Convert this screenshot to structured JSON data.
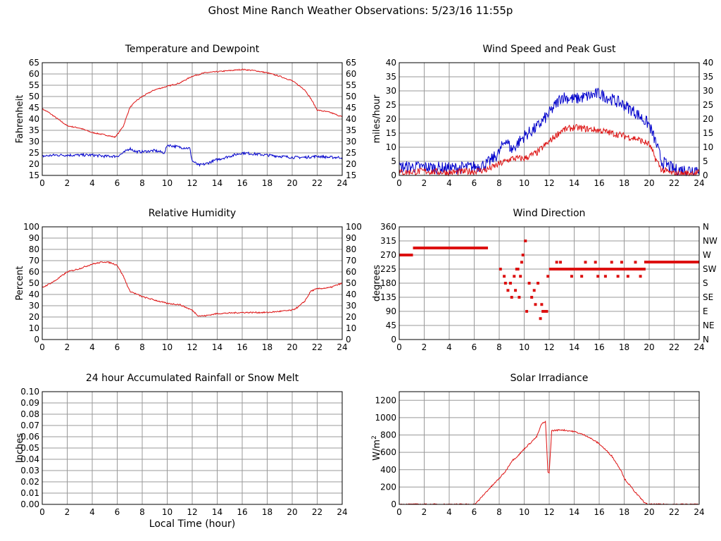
{
  "page": {
    "title": "Ghost Mine Ranch Weather Observations: 5/23/16 11:55p",
    "x_caption": "Local Time (hour)"
  },
  "colors": {
    "grid": "#999999",
    "axis": "#000000",
    "red": "#dd1111",
    "blue": "#0000cc"
  },
  "chart_data": [
    {
      "type": "line",
      "title": "Temperature and Dewpoint",
      "ylabel": "Fahrenheit",
      "xlim": [
        0,
        24
      ],
      "ylim": [
        15,
        65
      ],
      "xticks": [
        0,
        2,
        4,
        6,
        8,
        10,
        12,
        14,
        16,
        18,
        20,
        22,
        24
      ],
      "yticks": [
        15,
        20,
        25,
        30,
        35,
        40,
        45,
        50,
        55,
        60,
        65
      ],
      "right_ticks": [
        "15",
        "20",
        "25",
        "30",
        "35",
        "40",
        "45",
        "50",
        "55",
        "60",
        "65"
      ],
      "grid": true,
      "series": [
        {
          "color": "red",
          "noise": 0.25,
          "values": [
            [
              0,
              44.5
            ],
            [
              0.5,
              43
            ],
            [
              1,
              41
            ],
            [
              2,
              37
            ],
            [
              3,
              36
            ],
            [
              4,
              34
            ],
            [
              5,
              33
            ],
            [
              5.8,
              32
            ],
            [
              6,
              33
            ],
            [
              6.5,
              37
            ],
            [
              7,
              45
            ],
            [
              7.5,
              48
            ],
            [
              8,
              50
            ],
            [
              9,
              53
            ],
            [
              10,
              54.5
            ],
            [
              11,
              56
            ],
            [
              12,
              59
            ],
            [
              13,
              60.5
            ],
            [
              14,
              61
            ],
            [
              15,
              61.5
            ],
            [
              16,
              62
            ],
            [
              17,
              61.5
            ],
            [
              18,
              60.5
            ],
            [
              19,
              59
            ],
            [
              20,
              57
            ],
            [
              21,
              53
            ],
            [
              21.5,
              49
            ],
            [
              22,
              44
            ],
            [
              23,
              43
            ],
            [
              24,
              41
            ]
          ]
        },
        {
          "color": "blue",
          "noise": 0.6,
          "values": [
            [
              0,
              23.5
            ],
            [
              1,
              24
            ],
            [
              2,
              24
            ],
            [
              3,
              24
            ],
            [
              4,
              24
            ],
            [
              5,
              23.5
            ],
            [
              6,
              23.5
            ],
            [
              6.5,
              25
            ],
            [
              7,
              27
            ],
            [
              7.5,
              25.5
            ],
            [
              8,
              25.5
            ],
            [
              9,
              26
            ],
            [
              9.8,
              25
            ],
            [
              10,
              28.5
            ],
            [
              11,
              27.5
            ],
            [
              11.8,
              27
            ],
            [
              12,
              21.5
            ],
            [
              12.5,
              19.5
            ],
            [
              13,
              20
            ],
            [
              14,
              22
            ],
            [
              15,
              23.5
            ],
            [
              16,
              25
            ],
            [
              17,
              24.5
            ],
            [
              18,
              24
            ],
            [
              19,
              23.5
            ],
            [
              20,
              23
            ],
            [
              21,
              23
            ],
            [
              22,
              23.5
            ],
            [
              23,
              23
            ],
            [
              24,
              23
            ]
          ]
        }
      ]
    },
    {
      "type": "line",
      "title": "Wind Speed and Peak Gust",
      "ylabel": "miles/hour",
      "xlim": [
        0,
        24
      ],
      "ylim": [
        0,
        40
      ],
      "xticks": [
        0,
        2,
        4,
        6,
        8,
        10,
        12,
        14,
        16,
        18,
        20,
        22,
        24
      ],
      "yticks": [
        0,
        5,
        10,
        15,
        20,
        25,
        30,
        35,
        40
      ],
      "right_ticks": [
        "0",
        "5",
        "10",
        "15",
        "20",
        "25",
        "30",
        "35",
        "40"
      ],
      "grid": true,
      "series": [
        {
          "color": "blue",
          "noise": 2.2,
          "values": [
            [
              0,
              3
            ],
            [
              2,
              3
            ],
            [
              4,
              2.5
            ],
            [
              6,
              3
            ],
            [
              7,
              4
            ],
            [
              8,
              8
            ],
            [
              8.5,
              13
            ],
            [
              9,
              9
            ],
            [
              10,
              14
            ],
            [
              11,
              17
            ],
            [
              12,
              22
            ],
            [
              13,
              28
            ],
            [
              14,
              27
            ],
            [
              15,
              28
            ],
            [
              16,
              29
            ],
            [
              17,
              27
            ],
            [
              18,
              25
            ],
            [
              19,
              22
            ],
            [
              20,
              18
            ],
            [
              20.5,
              12
            ],
            [
              21,
              5
            ],
            [
              22,
              2
            ],
            [
              23,
              2
            ],
            [
              24,
              2.5
            ]
          ]
        },
        {
          "color": "red",
          "noise": 1.2,
          "values": [
            [
              0,
              1
            ],
            [
              2,
              1.5
            ],
            [
              4,
              1
            ],
            [
              6,
              1.5
            ],
            [
              7,
              2
            ],
            [
              8,
              4
            ],
            [
              9,
              6
            ],
            [
              10,
              6
            ],
            [
              11,
              8
            ],
            [
              12,
              12
            ],
            [
              13,
              16
            ],
            [
              14,
              17
            ],
            [
              15,
              16.5
            ],
            [
              16,
              16
            ],
            [
              17,
              15
            ],
            [
              18,
              14
            ],
            [
              19,
              13
            ],
            [
              20,
              11
            ],
            [
              20.5,
              6
            ],
            [
              21,
              2
            ],
            [
              22,
              0.5
            ],
            [
              24,
              1
            ]
          ]
        }
      ]
    },
    {
      "type": "line",
      "title": "Relative Humidity",
      "ylabel": "Percent",
      "xlim": [
        0,
        24
      ],
      "ylim": [
        0,
        100
      ],
      "xticks": [
        0,
        2,
        4,
        6,
        8,
        10,
        12,
        14,
        16,
        18,
        20,
        22,
        24
      ],
      "yticks": [
        0,
        10,
        20,
        30,
        40,
        50,
        60,
        70,
        80,
        90,
        100
      ],
      "right_ticks": [
        "0",
        "10",
        "20",
        "30",
        "40",
        "50",
        "60",
        "70",
        "80",
        "90",
        "100"
      ],
      "grid": true,
      "series": [
        {
          "color": "red",
          "noise": 0.6,
          "values": [
            [
              0,
              46
            ],
            [
              1,
              52
            ],
            [
              2,
              60
            ],
            [
              3,
              63
            ],
            [
              4,
              67
            ],
            [
              5,
              69
            ],
            [
              5.5,
              68
            ],
            [
              6,
              66
            ],
            [
              6.5,
              56
            ],
            [
              7,
              43
            ],
            [
              8,
              38
            ],
            [
              9,
              35
            ],
            [
              10,
              32
            ],
            [
              11,
              31
            ],
            [
              12,
              26
            ],
            [
              12.5,
              21
            ],
            [
              13,
              21
            ],
            [
              14,
              23
            ],
            [
              16,
              24
            ],
            [
              18,
              24
            ],
            [
              20,
              26
            ],
            [
              20.5,
              29
            ],
            [
              21,
              34
            ],
            [
              21.5,
              43
            ],
            [
              22,
              45
            ],
            [
              23,
              46
            ],
            [
              24,
              50
            ]
          ]
        }
      ]
    },
    {
      "type": "scatter",
      "title": "Wind Direction",
      "ylabel": "degrees",
      "xlim": [
        0,
        24
      ],
      "ylim": [
        0,
        360
      ],
      "xticks": [
        0,
        2,
        4,
        6,
        8,
        10,
        12,
        14,
        16,
        18,
        20,
        22,
        24
      ],
      "yticks": [
        0,
        45,
        90,
        135,
        180,
        225,
        270,
        315,
        360
      ],
      "right_ticks": [
        "N",
        "NE",
        "E",
        "SE",
        "S",
        "SW",
        "W",
        "NW",
        "N"
      ],
      "grid": true,
      "segments": [
        [
          0,
          1.1,
          270
        ],
        [
          1.1,
          7.1,
          292.5
        ],
        [
          19.6,
          24,
          247.5
        ]
      ],
      "points": [
        [
          8.4,
          202
        ],
        [
          8.5,
          180
        ],
        [
          8.7,
          157
        ],
        [
          8.9,
          180
        ],
        [
          9.2,
          202
        ],
        [
          9.4,
          225
        ],
        [
          9.5,
          225
        ],
        [
          9.7,
          202
        ],
        [
          8.1,
          225
        ],
        [
          9.0,
          135
        ],
        [
          9.3,
          157
        ],
        [
          9.6,
          135
        ],
        [
          9.8,
          247
        ],
        [
          9.9,
          270
        ],
        [
          10.1,
          315
        ],
        [
          10.2,
          90
        ],
        [
          10.4,
          180
        ],
        [
          10.6,
          135
        ],
        [
          10.8,
          157
        ],
        [
          10.9,
          112
        ],
        [
          11.1,
          180
        ],
        [
          11.3,
          67
        ],
        [
          11.4,
          112
        ],
        [
          11.5,
          90
        ],
        [
          11.6,
          90
        ],
        [
          11.8,
          90
        ],
        [
          11.9,
          202
        ],
        [
          12.1,
          225
        ],
        [
          12.3,
          225
        ],
        [
          12.6,
          247
        ],
        [
          12.9,
          247
        ],
        [
          13.2,
          225
        ],
        [
          13.5,
          225
        ],
        [
          13.8,
          202
        ],
        [
          14.0,
          225
        ],
        [
          14.3,
          225
        ],
        [
          14.6,
          202
        ],
        [
          14.9,
          247
        ],
        [
          15.1,
          225
        ],
        [
          15.4,
          225
        ],
        [
          15.7,
          247
        ],
        [
          15.9,
          202
        ],
        [
          16.2,
          225
        ],
        [
          16.5,
          202
        ],
        [
          16.8,
          225
        ],
        [
          17.0,
          247
        ],
        [
          17.2,
          225
        ],
        [
          17.5,
          202
        ],
        [
          17.8,
          247
        ],
        [
          18.1,
          225
        ],
        [
          18.3,
          202
        ],
        [
          18.6,
          225
        ],
        [
          18.9,
          247
        ],
        [
          19.1,
          225
        ],
        [
          19.3,
          202
        ],
        [
          19.5,
          225
        ]
      ],
      "dense_runs": [
        [
          12.4,
          19.6,
          225
        ]
      ]
    },
    {
      "type": "line",
      "title": "24 hour Accumulated Rainfall or Snow Melt",
      "ylabel": "Inches",
      "xlim": [
        0,
        24
      ],
      "ylim": [
        0,
        0.1
      ],
      "xticks": [
        0,
        2,
        4,
        6,
        8,
        10,
        12,
        14,
        16,
        18,
        20,
        22,
        24
      ],
      "yticks": [
        0,
        0.01,
        0.02,
        0.03,
        0.04,
        0.05,
        0.06,
        0.07,
        0.08,
        0.09,
        0.1
      ],
      "ytick_labels": [
        "0.00",
        "0.01",
        "0.02",
        "0.03",
        "0.04",
        "0.05",
        "0.06",
        "0.07",
        "0.08",
        "0.09",
        "0.10"
      ],
      "grid": true,
      "series": [
        {
          "color": "red",
          "noise": 0,
          "values": [
            [
              0,
              0
            ],
            [
              24,
              0
            ]
          ]
        }
      ]
    },
    {
      "type": "line",
      "title": "Solar Irradiance",
      "ylabel": "W/m",
      "ylabel_sup": "2",
      "xlim": [
        0,
        24
      ],
      "ylim": [
        0,
        1300
      ],
      "xticks": [
        0,
        2,
        4,
        6,
        8,
        10,
        12,
        14,
        16,
        18,
        20,
        22,
        24
      ],
      "yticks": [
        0,
        200,
        400,
        600,
        800,
        1000,
        1200
      ],
      "grid": true,
      "series": [
        {
          "color": "red",
          "noise": 8,
          "values": [
            [
              0,
              0
            ],
            [
              6,
              0
            ],
            [
              6.2,
              20
            ],
            [
              7,
              150
            ],
            [
              8,
              300
            ],
            [
              8.5,
              380
            ],
            [
              9,
              500
            ],
            [
              9.5,
              560
            ],
            [
              10,
              640
            ],
            [
              11,
              780
            ],
            [
              11.4,
              930
            ],
            [
              11.7,
              950
            ],
            [
              11.9,
              380
            ],
            [
              12.0,
              360
            ],
            [
              12.2,
              850
            ],
            [
              13,
              860
            ],
            [
              14,
              840
            ],
            [
              15,
              790
            ],
            [
              16,
              700
            ],
            [
              17,
              560
            ],
            [
              17.8,
              380
            ],
            [
              18,
              300
            ],
            [
              19,
              120
            ],
            [
              19.7,
              10
            ],
            [
              20,
              0
            ],
            [
              24,
              0
            ]
          ]
        }
      ]
    }
  ]
}
